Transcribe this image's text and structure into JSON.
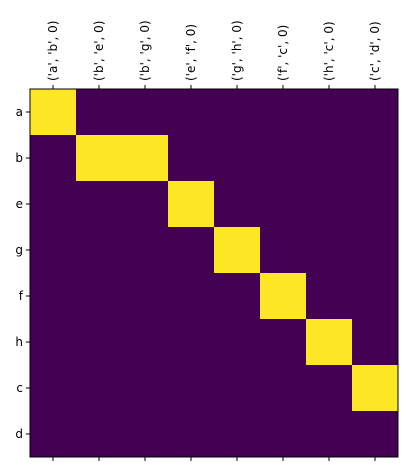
{
  "chart_data": {
    "type": "heatmap",
    "title": "",
    "xlabel": "",
    "ylabel": "",
    "x_categories": [
      "('a', 'b', 0)",
      "('b', 'e', 0)",
      "('b', 'g', 0)",
      "('e', 'f', 0)",
      "('g', 'h', 0)",
      "('f', 'c', 0)",
      "('h', 'c', 0)",
      "('c', 'd', 0)"
    ],
    "y_categories": [
      "a",
      "b",
      "e",
      "g",
      "f",
      "h",
      "c",
      "d"
    ],
    "values": [
      [
        1,
        0,
        0,
        0,
        0,
        0,
        0,
        0
      ],
      [
        0,
        1,
        1,
        0,
        0,
        0,
        0,
        0
      ],
      [
        0,
        0,
        0,
        1,
        0,
        0,
        0,
        0
      ],
      [
        0,
        0,
        0,
        0,
        1,
        0,
        0,
        0
      ],
      [
        0,
        0,
        0,
        0,
        0,
        1,
        0,
        0
      ],
      [
        0,
        0,
        0,
        0,
        0,
        0,
        1,
        0
      ],
      [
        0,
        0,
        0,
        0,
        0,
        0,
        0,
        1
      ],
      [
        0,
        0,
        0,
        0,
        0,
        0,
        0,
        0
      ]
    ],
    "colormap": {
      "low": "#440154",
      "high": "#fde725"
    },
    "x_tick_position": "top",
    "x_tick_rotation": 90,
    "grid": false
  }
}
